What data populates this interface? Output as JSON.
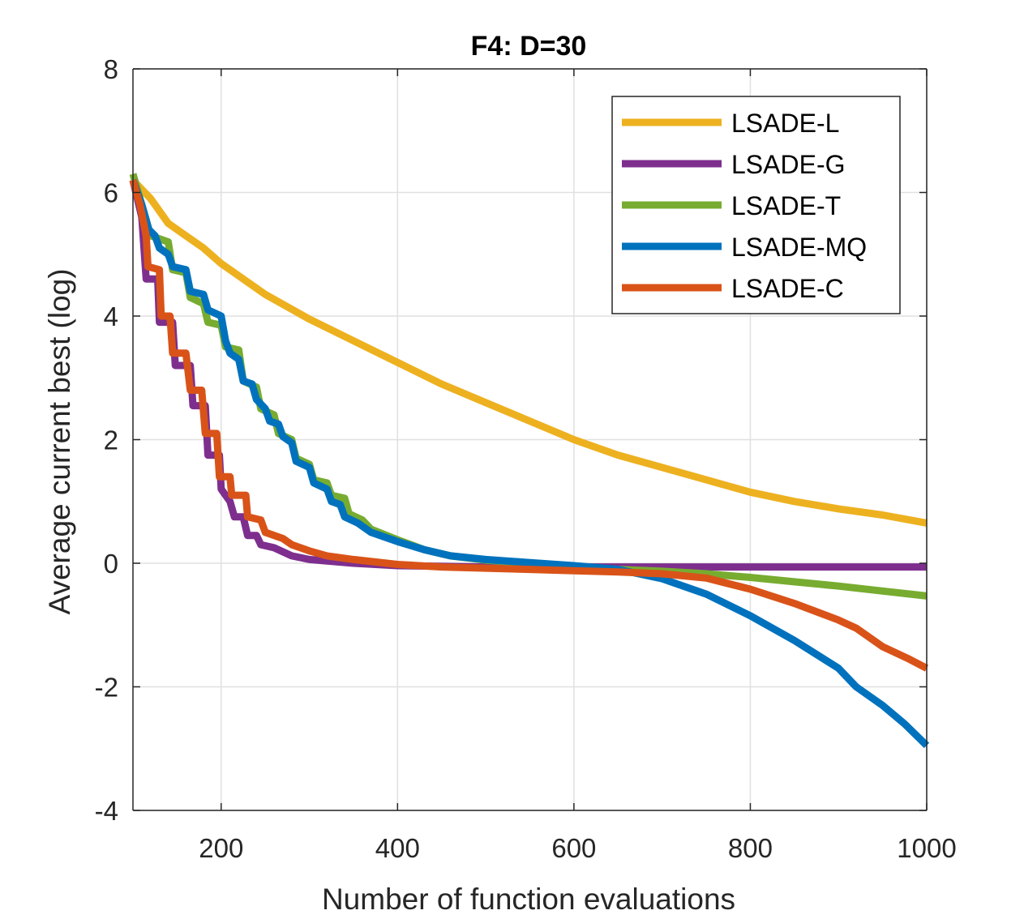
{
  "chart_data": {
    "type": "line",
    "title": "F4: D=30",
    "xlabel": "Number of function evaluations",
    "ylabel": "Average current best (log)",
    "xlim": [
      100,
      1000
    ],
    "ylim": [
      -4,
      8
    ],
    "xticks": [
      200,
      400,
      600,
      800,
      1000
    ],
    "xtick_labels": [
      "200",
      "400",
      "600",
      "800",
      "1000"
    ],
    "yticks": [
      -4,
      -2,
      0,
      2,
      4,
      6,
      8
    ],
    "ytick_labels": [
      "-4",
      "-2",
      "0",
      "2",
      "4",
      "6",
      "8"
    ],
    "grid": true,
    "legend_position": "top-right",
    "series": [
      {
        "name": "LSADE-L",
        "color": "#EDB120",
        "points": [
          [
            100,
            6.2
          ],
          [
            120,
            5.9
          ],
          [
            140,
            5.5
          ],
          [
            160,
            5.3
          ],
          [
            180,
            5.1
          ],
          [
            200,
            4.85
          ],
          [
            250,
            4.35
          ],
          [
            300,
            3.95
          ],
          [
            350,
            3.6
          ],
          [
            400,
            3.25
          ],
          [
            450,
            2.9
          ],
          [
            500,
            2.6
          ],
          [
            550,
            2.3
          ],
          [
            600,
            2.0
          ],
          [
            650,
            1.75
          ],
          [
            700,
            1.55
          ],
          [
            750,
            1.35
          ],
          [
            800,
            1.15
          ],
          [
            850,
            1.0
          ],
          [
            900,
            0.88
          ],
          [
            950,
            0.78
          ],
          [
            1000,
            0.65
          ]
        ]
      },
      {
        "name": "LSADE-G",
        "color": "#7E2F8E",
        "points": [
          [
            100,
            6.2
          ],
          [
            110,
            5.6
          ],
          [
            115,
            4.6
          ],
          [
            128,
            4.6
          ],
          [
            130,
            3.9
          ],
          [
            145,
            3.9
          ],
          [
            148,
            3.2
          ],
          [
            165,
            3.2
          ],
          [
            168,
            2.55
          ],
          [
            182,
            2.55
          ],
          [
            185,
            1.75
          ],
          [
            198,
            1.75
          ],
          [
            200,
            1.2
          ],
          [
            210,
            1.0
          ],
          [
            215,
            0.75
          ],
          [
            225,
            0.75
          ],
          [
            230,
            0.45
          ],
          [
            240,
            0.45
          ],
          [
            245,
            0.3
          ],
          [
            260,
            0.25
          ],
          [
            280,
            0.12
          ],
          [
            300,
            0.06
          ],
          [
            350,
            0.0
          ],
          [
            400,
            -0.04
          ],
          [
            500,
            -0.06
          ],
          [
            600,
            -0.06
          ],
          [
            700,
            -0.06
          ],
          [
            800,
            -0.06
          ],
          [
            900,
            -0.06
          ],
          [
            1000,
            -0.06
          ]
        ]
      },
      {
        "name": "LSADE-T",
        "color": "#77AC30",
        "points": [
          [
            100,
            6.3
          ],
          [
            110,
            5.8
          ],
          [
            120,
            5.3
          ],
          [
            140,
            5.2
          ],
          [
            145,
            4.75
          ],
          [
            160,
            4.7
          ],
          [
            165,
            4.3
          ],
          [
            180,
            4.2
          ],
          [
            185,
            3.9
          ],
          [
            200,
            3.85
          ],
          [
            205,
            3.5
          ],
          [
            220,
            3.45
          ],
          [
            225,
            2.95
          ],
          [
            240,
            2.85
          ],
          [
            245,
            2.5
          ],
          [
            260,
            2.4
          ],
          [
            265,
            2.1
          ],
          [
            280,
            2.0
          ],
          [
            285,
            1.7
          ],
          [
            300,
            1.6
          ],
          [
            305,
            1.35
          ],
          [
            320,
            1.3
          ],
          [
            325,
            1.1
          ],
          [
            340,
            1.05
          ],
          [
            345,
            0.8
          ],
          [
            360,
            0.7
          ],
          [
            370,
            0.55
          ],
          [
            400,
            0.38
          ],
          [
            430,
            0.22
          ],
          [
            460,
            0.12
          ],
          [
            500,
            0.05
          ],
          [
            550,
            0.0
          ],
          [
            600,
            -0.05
          ],
          [
            650,
            -0.1
          ],
          [
            700,
            -0.13
          ],
          [
            750,
            -0.17
          ],
          [
            800,
            -0.23
          ],
          [
            850,
            -0.3
          ],
          [
            900,
            -0.37
          ],
          [
            950,
            -0.45
          ],
          [
            1000,
            -0.53
          ]
        ]
      },
      {
        "name": "LSADE-MQ",
        "color": "#0072BD",
        "points": [
          [
            100,
            6.2
          ],
          [
            110,
            5.8
          ],
          [
            118,
            5.4
          ],
          [
            125,
            5.3
          ],
          [
            130,
            5.1
          ],
          [
            140,
            5.0
          ],
          [
            145,
            4.8
          ],
          [
            160,
            4.75
          ],
          [
            165,
            4.4
          ],
          [
            180,
            4.35
          ],
          [
            185,
            4.1
          ],
          [
            200,
            4.0
          ],
          [
            205,
            3.6
          ],
          [
            210,
            3.4
          ],
          [
            220,
            3.3
          ],
          [
            225,
            2.95
          ],
          [
            235,
            2.9
          ],
          [
            240,
            2.65
          ],
          [
            250,
            2.5
          ],
          [
            255,
            2.3
          ],
          [
            265,
            2.25
          ],
          [
            270,
            2.05
          ],
          [
            280,
            1.95
          ],
          [
            285,
            1.65
          ],
          [
            300,
            1.55
          ],
          [
            305,
            1.3
          ],
          [
            320,
            1.2
          ],
          [
            325,
            1.0
          ],
          [
            335,
            0.95
          ],
          [
            340,
            0.75
          ],
          [
            355,
            0.65
          ],
          [
            370,
            0.5
          ],
          [
            400,
            0.35
          ],
          [
            430,
            0.22
          ],
          [
            460,
            0.12
          ],
          [
            500,
            0.06
          ],
          [
            550,
            0.01
          ],
          [
            600,
            -0.04
          ],
          [
            650,
            -0.1
          ],
          [
            700,
            -0.25
          ],
          [
            750,
            -0.5
          ],
          [
            800,
            -0.85
          ],
          [
            850,
            -1.25
          ],
          [
            900,
            -1.7
          ],
          [
            920,
            -2.0
          ],
          [
            950,
            -2.3
          ],
          [
            975,
            -2.6
          ],
          [
            1000,
            -2.95
          ]
        ]
      },
      {
        "name": "LSADE-C",
        "color": "#D95319",
        "points": [
          [
            100,
            6.2
          ],
          [
            108,
            5.8
          ],
          [
            115,
            5.3
          ],
          [
            117,
            4.8
          ],
          [
            130,
            4.75
          ],
          [
            132,
            4.0
          ],
          [
            142,
            4.0
          ],
          [
            145,
            3.4
          ],
          [
            160,
            3.4
          ],
          [
            165,
            2.8
          ],
          [
            178,
            2.8
          ],
          [
            182,
            2.1
          ],
          [
            195,
            2.1
          ],
          [
            198,
            1.4
          ],
          [
            210,
            1.4
          ],
          [
            212,
            1.1
          ],
          [
            228,
            1.1
          ],
          [
            230,
            0.75
          ],
          [
            245,
            0.7
          ],
          [
            250,
            0.5
          ],
          [
            270,
            0.4
          ],
          [
            280,
            0.3
          ],
          [
            300,
            0.2
          ],
          [
            320,
            0.12
          ],
          [
            350,
            0.06
          ],
          [
            400,
            -0.02
          ],
          [
            450,
            -0.06
          ],
          [
            500,
            -0.08
          ],
          [
            550,
            -0.1
          ],
          [
            600,
            -0.12
          ],
          [
            650,
            -0.14
          ],
          [
            700,
            -0.17
          ],
          [
            750,
            -0.24
          ],
          [
            800,
            -0.42
          ],
          [
            850,
            -0.65
          ],
          [
            900,
            -0.92
          ],
          [
            920,
            -1.05
          ],
          [
            950,
            -1.35
          ],
          [
            980,
            -1.55
          ],
          [
            1000,
            -1.7
          ]
        ]
      }
    ]
  }
}
